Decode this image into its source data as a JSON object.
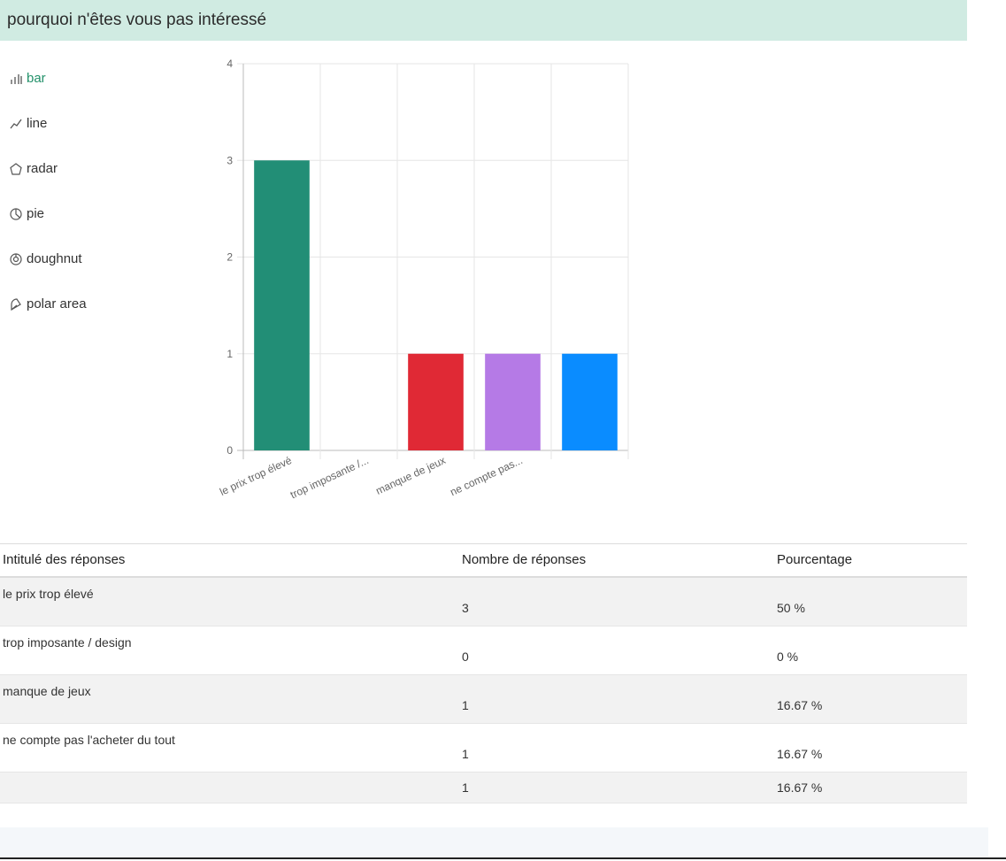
{
  "header": {
    "title": "pourquoi n'êtes vous pas intéressé"
  },
  "chart_types": [
    {
      "label": "bar",
      "icon": "bar-chart-icon",
      "active": true
    },
    {
      "label": "line",
      "icon": "line-chart-icon",
      "active": false
    },
    {
      "label": "radar",
      "icon": "radar-chart-icon",
      "active": false
    },
    {
      "label": "pie",
      "icon": "pie-chart-icon",
      "active": false
    },
    {
      "label": "doughnut",
      "icon": "doughnut-chart-icon",
      "active": false
    },
    {
      "label": "polar area",
      "icon": "polar-area-chart-icon",
      "active": false
    }
  ],
  "chart_data": {
    "type": "bar",
    "categories": [
      "le prix trop élevé",
      "trop imposante /...",
      "manque de jeux",
      "ne compte pas...",
      ""
    ],
    "values": [
      3,
      0,
      1,
      1,
      1
    ],
    "colors": [
      "#228e76",
      "#cccccc",
      "#e02935",
      "#b57ae6",
      "#0a8cff"
    ],
    "ylim": [
      0,
      4
    ],
    "yticks": [
      "0",
      "1",
      "2",
      "3",
      "4"
    ],
    "grid": true
  },
  "table": {
    "headers": [
      "Intitulé des réponses",
      "Nombre de réponses",
      "Pourcentage"
    ],
    "rows": [
      {
        "label": "le prix trop élevé",
        "count": "3",
        "percent": "50 %"
      },
      {
        "label": "trop imposante / design",
        "count": "0",
        "percent": "0 %"
      },
      {
        "label": "manque de jeux",
        "count": "1",
        "percent": "16.67 %"
      },
      {
        "label": "ne compte pas l'acheter du tout",
        "count": "1",
        "percent": "16.67 %"
      },
      {
        "label": "",
        "count": "1",
        "percent": "16.67 %"
      }
    ]
  }
}
